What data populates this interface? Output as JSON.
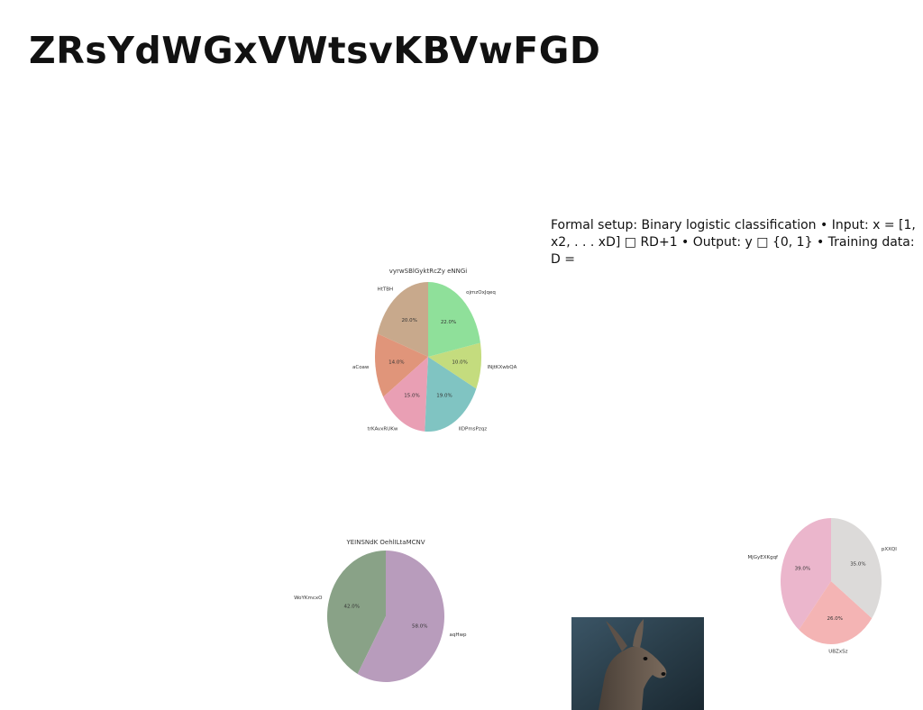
{
  "page": {
    "title": "ZRsYdWGxVWtsvKBVwFGD",
    "setup_text": "Formal setup: Binary logistic classification • Input: x = [1, x2, . . . xD] □ RD+1 • Output: y □ {0, 1} • Training data: D ="
  },
  "chart_data": [
    {
      "type": "pie",
      "title": "vyrwSBlGyktRcZy eNNGi",
      "start_angle": 90,
      "direction": "counterclockwise",
      "slices": [
        {
          "label": "HtTBH",
          "value": 20.0,
          "pct": "20.0%",
          "color": "#c8a98c"
        },
        {
          "label": "aCoaw",
          "value": 14.0,
          "pct": "14.0%",
          "color": "#e0957a"
        },
        {
          "label": "trKAvxRUKw",
          "value": 15.0,
          "pct": "15.0%",
          "color": "#e99fb4"
        },
        {
          "label": "lIDPmsPzqz",
          "value": 19.0,
          "pct": "19.0%",
          "color": "#80c4c2"
        },
        {
          "label": "lNjtKXwbQA",
          "value": 10.0,
          "pct": "10.0%",
          "color": "#c4dc7e"
        },
        {
          "label": "ojmzOxJqeq",
          "value": 22.0,
          "pct": "22.0%",
          "color": "#8fe09a"
        }
      ]
    },
    {
      "type": "pie",
      "title": "YEINSNdK OehlILtaMCNV",
      "start_angle": 90,
      "direction": "counterclockwise",
      "slices": [
        {
          "label": "WoYKmcxO",
          "value": 42.0,
          "pct": "42.0%",
          "color": "#89a287"
        },
        {
          "label": "aqHwp",
          "value": 58.0,
          "pct": "58.0%",
          "color": "#b89cbc"
        }
      ]
    },
    {
      "type": "pie",
      "title": "",
      "start_angle": 90,
      "direction": "counterclockwise",
      "slices": [
        {
          "label": "MjGyEXKgqf",
          "value": 39.0,
          "pct": "39.0%",
          "color": "#ebb6cc"
        },
        {
          "label": "UBZxSz",
          "value": 26.0,
          "pct": "26.0%",
          "color": "#f4b4b4"
        },
        {
          "label": "pXXQI",
          "value": 35.0,
          "pct": "35.0%",
          "color": "#dcdad9"
        }
      ]
    }
  ],
  "photo": {
    "subject": "deer-photo"
  }
}
